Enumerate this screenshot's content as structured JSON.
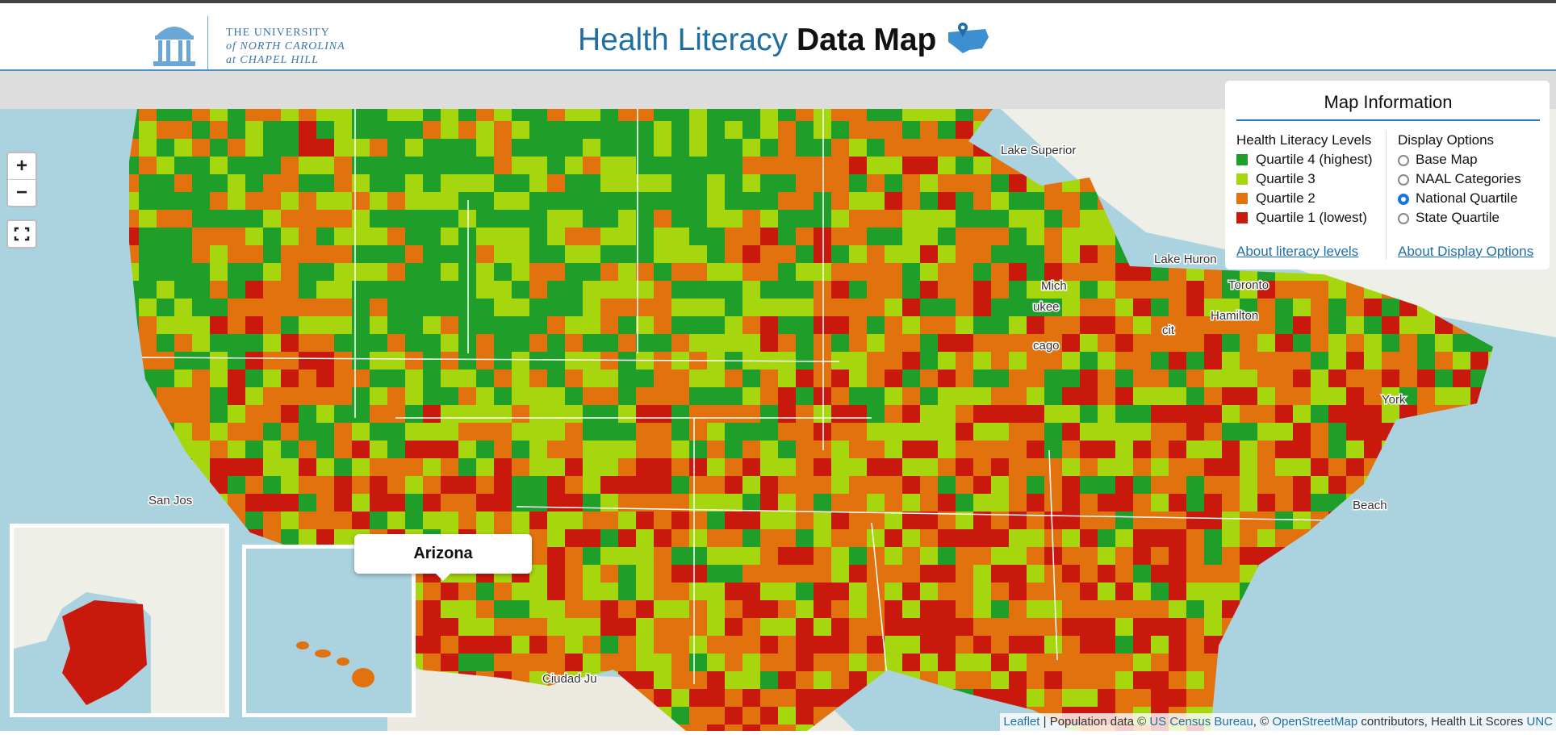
{
  "header": {
    "logo": {
      "line1": "THE UNIVERSITY",
      "line2": "of NORTH CAROLINA",
      "line3": "at CHAPEL HILL"
    },
    "title_light": "Health Literacy",
    "title_bold": "Data Map"
  },
  "zoom": {
    "in": "+",
    "out": "−"
  },
  "panel": {
    "title": "Map Information",
    "legend_title": "Health Literacy Levels",
    "legend": [
      {
        "label": "Quartile 4 (highest)",
        "color": "#1f9e2a"
      },
      {
        "label": "Quartile 3",
        "color": "#a6d60e"
      },
      {
        "label": "Quartile 2",
        "color": "#e2720e"
      },
      {
        "label": "Quartile 1 (lowest)",
        "color": "#c9180c"
      }
    ],
    "options_title": "Display Options",
    "options": [
      {
        "label": "Base Map",
        "selected": false
      },
      {
        "label": "NAAL Categories",
        "selected": false
      },
      {
        "label": "National Quartile",
        "selected": true
      },
      {
        "label": "State Quartile",
        "selected": false
      }
    ],
    "link_left": "About literacy levels",
    "link_right": "About Display Options"
  },
  "tooltip": "Arizona",
  "map_labels": [
    "Lake Superior",
    "Lake Huron",
    "Toronto",
    "Hamilton",
    "Mich",
    "ukee",
    "cago",
    "cit",
    "York",
    "Beach",
    "San Jos",
    "Ciudad Ju"
  ],
  "attribution": {
    "leaflet": "Leaflet",
    "pop": "| Population data ©",
    "census": "US Census Bureau",
    "sep": ", ©",
    "osm": "OpenStreetMap",
    "rest": "contributors, Health Lit Scores",
    "unc": "UNC"
  }
}
